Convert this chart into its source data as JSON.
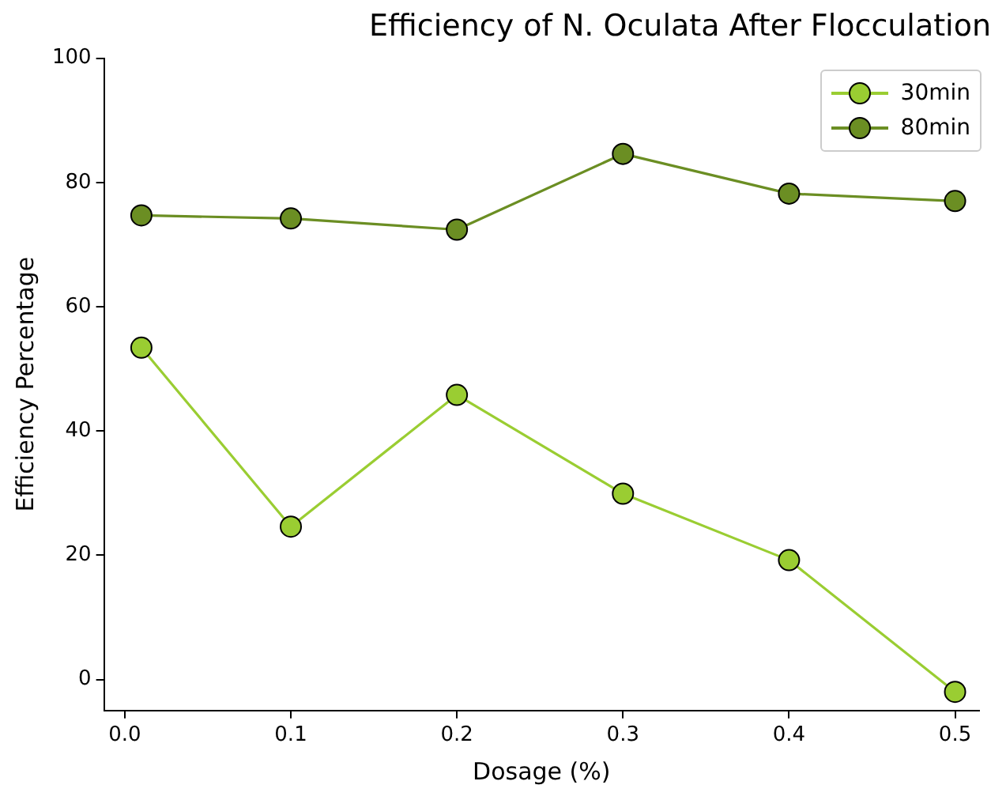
{
  "chart_data": {
    "type": "line",
    "title": "Efficiency of N. Oculata After Flocculation",
    "xlabel": "Dosage (%)",
    "ylabel": "Efficiency Percentage",
    "x": [
      0.01,
      0.1,
      0.2,
      0.3,
      0.4,
      0.5
    ],
    "series": [
      {
        "name": "30min",
        "color": "#9acd32",
        "values": [
          53.4,
          24.6,
          45.8,
          29.9,
          19.2,
          -2.0
        ]
      },
      {
        "name": "80min",
        "color": "#6b8e23",
        "values": [
          74.7,
          74.2,
          72.4,
          84.6,
          78.2,
          77.0
        ]
      }
    ],
    "xlim": [
      -0.0125,
      0.5145
    ],
    "xticks": [
      {
        "value": 0,
        "label": "0.0"
      },
      0.1,
      0.2,
      0.3,
      0.4,
      0.5
    ],
    "ylim": [
      -5,
      100
    ],
    "yticks": [
      0,
      20,
      40,
      60,
      80,
      100
    ],
    "grid": false,
    "legend": "top right",
    "marker": "circle",
    "line_style": "solid"
  }
}
